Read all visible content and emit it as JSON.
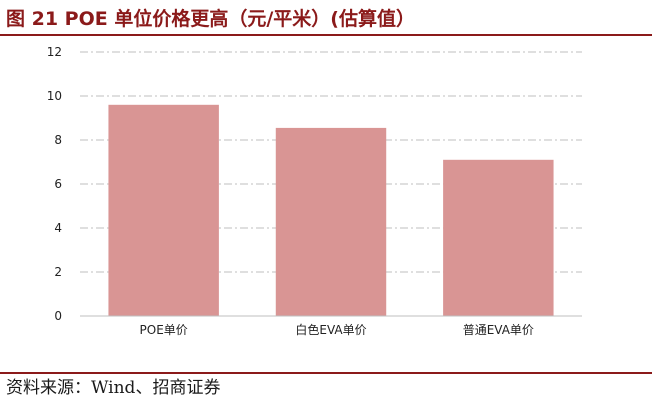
{
  "figure": {
    "title": "图 21 POE 单位价格更高（元/平米）(估算值）",
    "source": "资料来源：Wind、招商证券"
  },
  "colors": {
    "bar": "#d99594",
    "accent": "#8b1a1a",
    "grid": "#bfbfbf"
  },
  "chart_data": {
    "type": "bar",
    "title": "",
    "xlabel": "",
    "ylabel": "",
    "categories": [
      "POE单价",
      "白色EVA单价",
      "普通EVA单价"
    ],
    "values": [
      9.6,
      8.55,
      7.1
    ],
    "ylim": [
      0,
      12
    ],
    "yticks": [
      0,
      2,
      4,
      6,
      8,
      10,
      12
    ],
    "grid": true,
    "legend": "none"
  }
}
